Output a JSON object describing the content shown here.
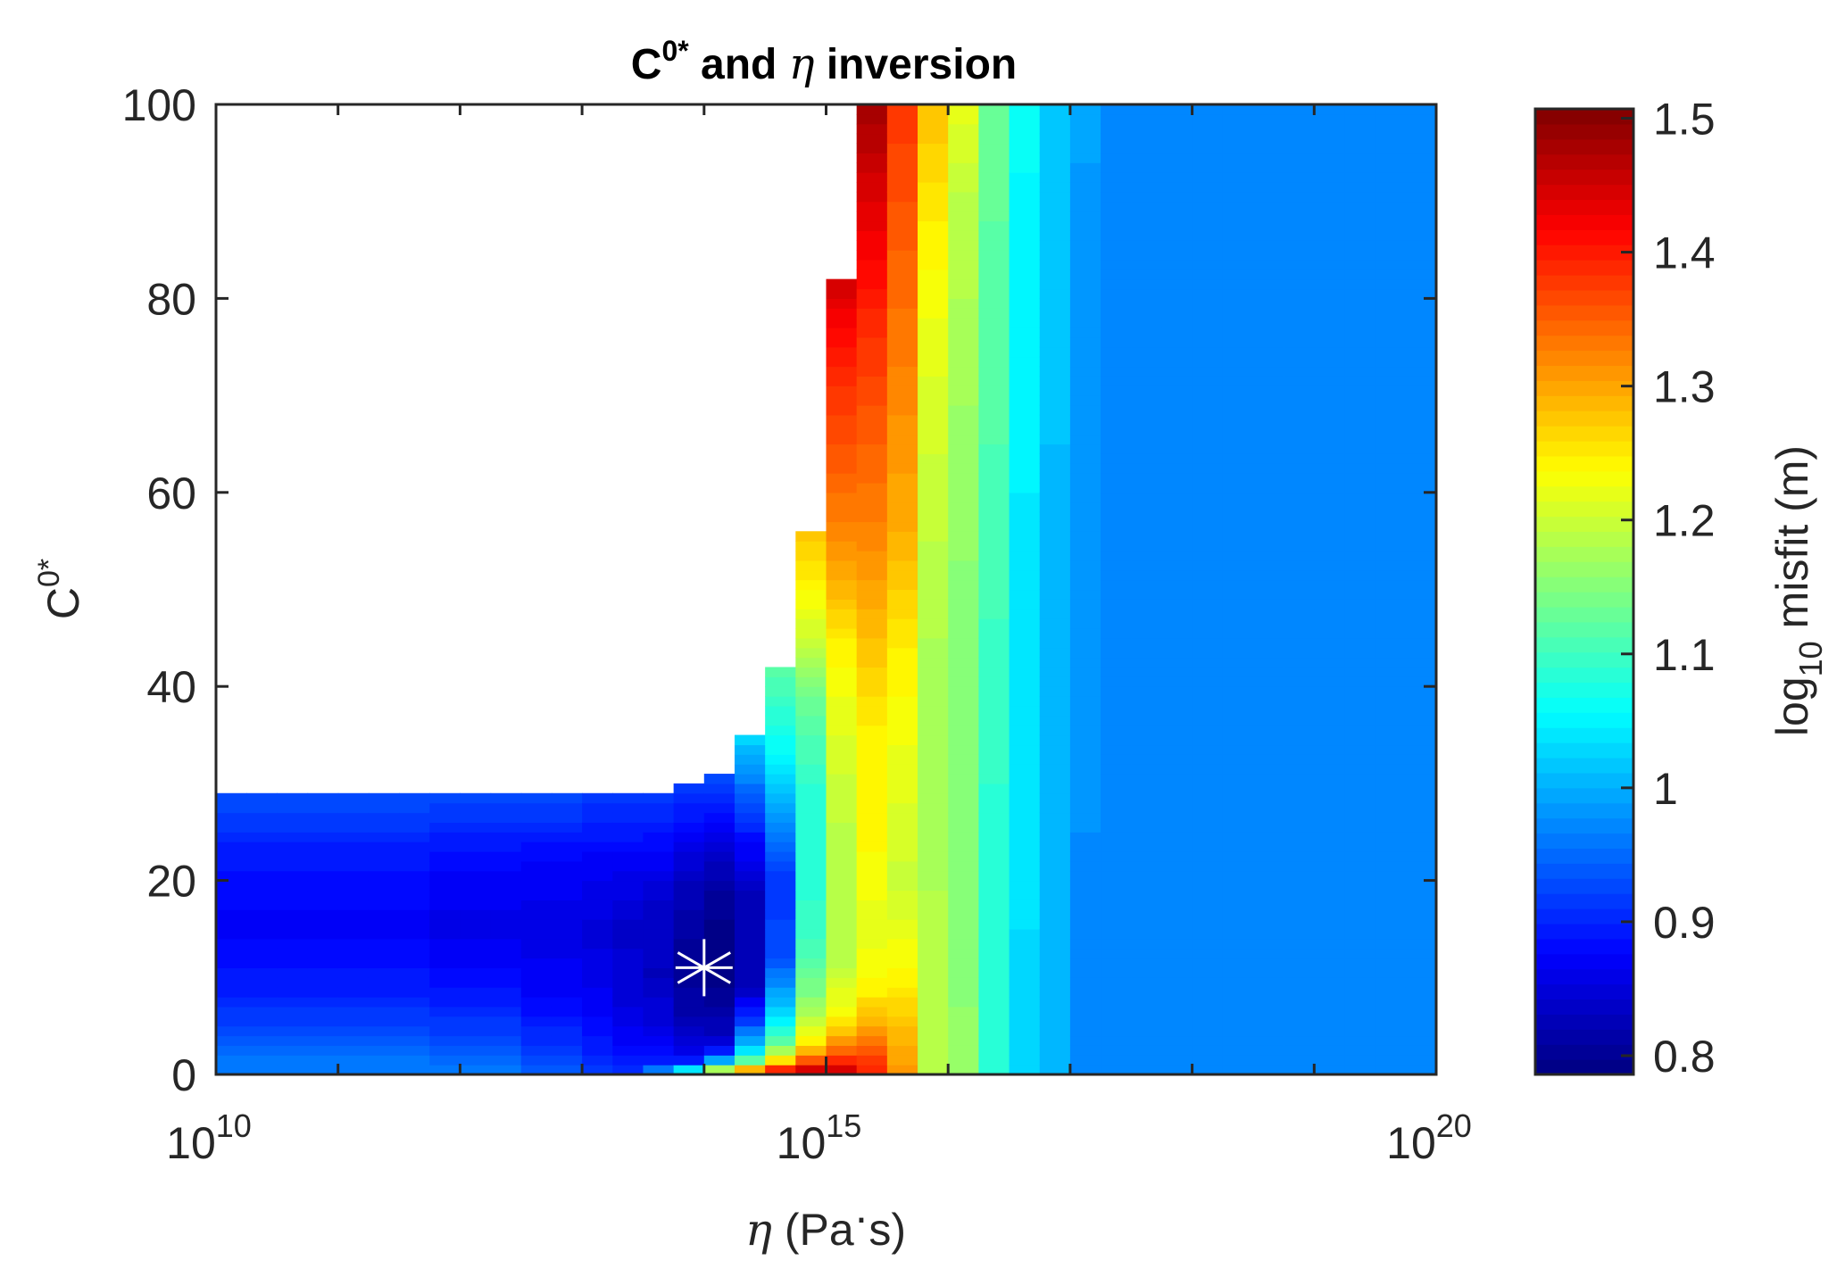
{
  "chart_data": {
    "type": "heatmap",
    "title": {
      "base": "C",
      "sup": "0*",
      "rest": " and ",
      "symbol": "η",
      "end": " inversion"
    },
    "xlabel": {
      "symbol": "η",
      "text": " (Pa",
      "dot": "·",
      "end": "s)"
    },
    "ylabel": {
      "base": "C",
      "sup": "0*"
    },
    "x_scale": "log",
    "xlim_log10": [
      10,
      20
    ],
    "ylim": [
      0,
      100
    ],
    "x_ticks": [
      {
        "base": "10",
        "exp": "10",
        "log10": 10
      },
      {
        "base": "10",
        "exp": "15",
        "log10": 15
      },
      {
        "base": "10",
        "exp": "20",
        "log10": 20
      }
    ],
    "y_ticks": [
      "0",
      "20",
      "40",
      "60",
      "80",
      "100"
    ],
    "y_tick_values": [
      0,
      20,
      40,
      60,
      80,
      100
    ],
    "colorbar": {
      "label": {
        "pre": "log",
        "sub": "10",
        "post": " misfit (m)"
      },
      "clim": [
        0.786,
        1.507
      ],
      "ticks": [
        "0.8",
        "0.9",
        "1",
        "1.1",
        "1.2",
        "1.3",
        "1.4",
        "1.5"
      ],
      "tick_values": [
        0.8,
        0.9,
        1.0,
        1.1,
        1.2,
        1.3,
        1.4,
        1.5
      ],
      "colormap": "jet",
      "levels": 64
    },
    "cell_width_log10": 0.25,
    "cell_height": 1,
    "note": "columns: eta log10 range, max valid C0* (cutoff), misfit profile as [C0*, log10 misfit] knots",
    "columns": [
      {
        "eta_log10": [
          10.0,
          11.75
        ],
        "cutoff": 29,
        "profile": [
          [
            0,
            0.97
          ],
          [
            3,
            0.94
          ],
          [
            8,
            0.9
          ],
          [
            15,
            0.87
          ],
          [
            22,
            0.89
          ],
          [
            29,
            0.93
          ]
        ]
      },
      {
        "eta_log10": [
          11.75,
          12.5
        ],
        "cutoff": 29,
        "profile": [
          [
            0,
            0.96
          ],
          [
            3,
            0.93
          ],
          [
            8,
            0.89
          ],
          [
            15,
            0.86
          ],
          [
            22,
            0.88
          ],
          [
            29,
            0.93
          ]
        ]
      },
      {
        "eta_log10": [
          12.5,
          13.0
        ],
        "cutoff": 29,
        "profile": [
          [
            0,
            0.94
          ],
          [
            3,
            0.91
          ],
          [
            8,
            0.875
          ],
          [
            15,
            0.855
          ],
          [
            22,
            0.875
          ],
          [
            29,
            0.93
          ]
        ]
      },
      {
        "eta_log10": [
          13.0,
          13.25
        ],
        "cutoff": 29,
        "profile": [
          [
            0,
            0.92
          ],
          [
            3,
            0.89
          ],
          [
            10,
            0.86
          ],
          [
            15,
            0.85
          ],
          [
            22,
            0.87
          ],
          [
            29,
            0.92
          ]
        ]
      },
      {
        "eta_log10": [
          13.25,
          13.5
        ],
        "cutoff": 29,
        "profile": [
          [
            0,
            0.91
          ],
          [
            2,
            0.88
          ],
          [
            8,
            0.85
          ],
          [
            15,
            0.84
          ],
          [
            22,
            0.87
          ],
          [
            29,
            0.92
          ]
        ]
      },
      {
        "eta_log10": [
          13.5,
          13.75
        ],
        "cutoff": 29,
        "profile": [
          [
            0,
            1.02
          ],
          [
            1,
            0.9
          ],
          [
            4,
            0.86
          ],
          [
            10,
            0.83
          ],
          [
            18,
            0.84
          ],
          [
            29,
            0.92
          ]
        ]
      },
      {
        "eta_log10": [
          13.75,
          14.0
        ],
        "cutoff": 30,
        "profile": [
          [
            0,
            1.15
          ],
          [
            1,
            0.93
          ],
          [
            2,
            0.86
          ],
          [
            6,
            0.82
          ],
          [
            12,
            0.8
          ],
          [
            20,
            0.83
          ],
          [
            30,
            0.92
          ]
        ]
      },
      {
        "eta_log10": [
          14.0,
          14.25
        ],
        "cutoff": 31,
        "profile": [
          [
            0,
            1.27
          ],
          [
            1,
            1.07
          ],
          [
            2,
            0.91
          ],
          [
            4,
            0.83
          ],
          [
            10,
            0.79
          ],
          [
            18,
            0.8
          ],
          [
            25,
            0.86
          ],
          [
            31,
            0.93
          ]
        ]
      },
      {
        "eta_log10": [
          14.25,
          14.5
        ],
        "cutoff": 35,
        "profile": [
          [
            0,
            1.39
          ],
          [
            1,
            1.18
          ],
          [
            2,
            1.06
          ],
          [
            4,
            0.98
          ],
          [
            6,
            0.9
          ],
          [
            9,
            0.83
          ],
          [
            18,
            0.82
          ],
          [
            24,
            0.88
          ],
          [
            30,
            0.96
          ],
          [
            35,
            1.03
          ]
        ]
      },
      {
        "eta_log10": [
          14.5,
          14.75
        ],
        "cutoff": 42,
        "profile": [
          [
            0,
            1.46
          ],
          [
            1,
            1.31
          ],
          [
            2,
            1.2
          ],
          [
            3,
            1.14
          ],
          [
            5,
            1.06
          ],
          [
            8,
            1.0
          ],
          [
            12,
            0.93
          ],
          [
            20,
            0.91
          ],
          [
            26,
            0.98
          ],
          [
            32,
            1.05
          ],
          [
            42,
            1.12
          ]
        ]
      },
      {
        "eta_log10": [
          14.75,
          15.0
        ],
        "cutoff": 56,
        "profile": [
          [
            0,
            1.5
          ],
          [
            1,
            1.4
          ],
          [
            2,
            1.3
          ],
          [
            4,
            1.23
          ],
          [
            8,
            1.15
          ],
          [
            14,
            1.1
          ],
          [
            22,
            1.08
          ],
          [
            30,
            1.09
          ],
          [
            38,
            1.13
          ],
          [
            45,
            1.2
          ],
          [
            50,
            1.24
          ],
          [
            56,
            1.28
          ]
        ]
      },
      {
        "eta_log10": [
          15.0,
          15.25
        ],
        "cutoff": 82,
        "profile": [
          [
            0,
            1.47
          ],
          [
            1,
            1.41
          ],
          [
            3,
            1.32
          ],
          [
            6,
            1.24
          ],
          [
            12,
            1.18
          ],
          [
            25,
            1.19
          ],
          [
            38,
            1.22
          ],
          [
            45,
            1.25
          ],
          [
            52,
            1.3
          ],
          [
            60,
            1.34
          ],
          [
            70,
            1.38
          ],
          [
            76,
            1.41
          ],
          [
            82,
            1.45
          ]
        ]
      },
      {
        "eta_log10": [
          15.25,
          15.5
        ],
        "cutoff": 100,
        "profile": [
          [
            0,
            1.4
          ],
          [
            2,
            1.37
          ],
          [
            5,
            1.3
          ],
          [
            9,
            1.24
          ],
          [
            15,
            1.22
          ],
          [
            25,
            1.24
          ],
          [
            34,
            1.24
          ],
          [
            45,
            1.28
          ],
          [
            55,
            1.32
          ],
          [
            65,
            1.35
          ],
          [
            75,
            1.38
          ],
          [
            85,
            1.42
          ],
          [
            95,
            1.46
          ],
          [
            100,
            1.48
          ]
        ]
      },
      {
        "eta_log10": [
          15.5,
          15.75
        ],
        "cutoff": 100,
        "profile": [
          [
            0,
            1.31
          ],
          [
            4,
            1.29
          ],
          [
            10,
            1.24
          ],
          [
            20,
            1.2
          ],
          [
            32,
            1.22
          ],
          [
            45,
            1.25
          ],
          [
            55,
            1.29
          ],
          [
            70,
            1.32
          ],
          [
            85,
            1.35
          ],
          [
            100,
            1.38
          ]
        ]
      },
      {
        "eta_log10": [
          15.75,
          16.0
        ],
        "cutoff": 100,
        "profile": [
          [
            0,
            1.19
          ],
          [
            20,
            1.18
          ],
          [
            45,
            1.18
          ],
          [
            70,
            1.21
          ],
          [
            85,
            1.24
          ],
          [
            100,
            1.28
          ]
        ]
      },
      {
        "eta_log10": [
          16.0,
          16.25
        ],
        "cutoff": 100,
        "profile": [
          [
            0,
            1.16
          ],
          [
            30,
            1.15
          ],
          [
            60,
            1.16
          ],
          [
            90,
            1.19
          ],
          [
            100,
            1.22
          ]
        ]
      },
      {
        "eta_log10": [
          16.25,
          16.5
        ],
        "cutoff": 100,
        "profile": [
          [
            0,
            1.08
          ],
          [
            30,
            1.09
          ],
          [
            60,
            1.11
          ],
          [
            100,
            1.13
          ]
        ]
      },
      {
        "eta_log10": [
          16.5,
          16.75
        ],
        "cutoff": 100,
        "profile": [
          [
            0,
            1.03
          ],
          [
            40,
            1.04
          ],
          [
            80,
            1.05
          ],
          [
            100,
            1.06
          ]
        ]
      },
      {
        "eta_log10": [
          16.75,
          17.0
        ],
        "cutoff": 100,
        "profile": [
          [
            0,
            1.0
          ],
          [
            60,
            1.01
          ],
          [
            100,
            1.02
          ]
        ]
      },
      {
        "eta_log10": [
          17.0,
          17.25
        ],
        "cutoff": 100,
        "profile": [
          [
            0,
            0.975
          ],
          [
            50,
            0.98
          ],
          [
            100,
            0.99
          ]
        ]
      },
      {
        "eta_log10": [
          17.25,
          17.5
        ],
        "cutoff": 100,
        "profile": [
          [
            0,
            0.97
          ],
          [
            34,
            0.975
          ],
          [
            100,
            0.975
          ]
        ]
      },
      {
        "eta_log10": [
          17.5,
          20.0
        ],
        "cutoff": 100,
        "profile": [
          [
            0,
            0.97
          ],
          [
            100,
            0.97
          ]
        ]
      }
    ],
    "best_fit_marker": {
      "symbol": "asterisk",
      "eta_log10": 14.0,
      "c0": 11,
      "color": "#ffffff"
    }
  }
}
